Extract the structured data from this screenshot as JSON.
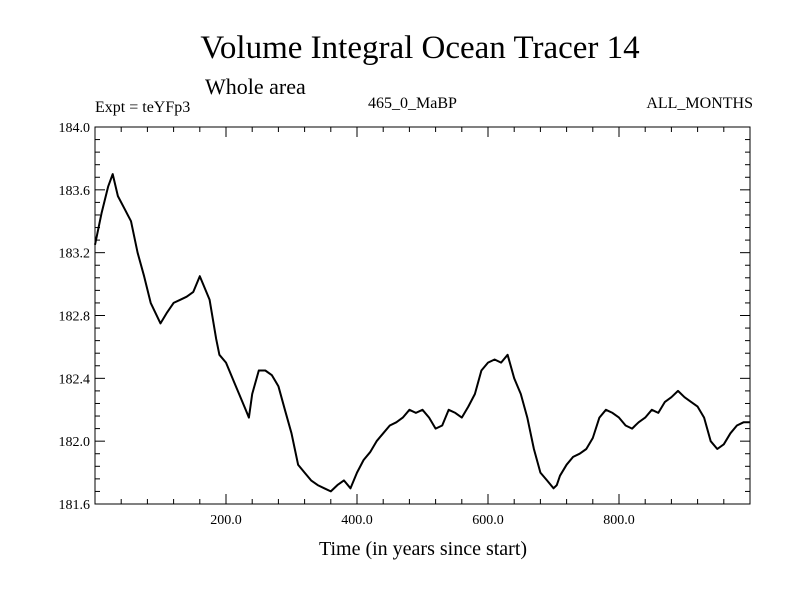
{
  "chart_data": {
    "type": "line",
    "title": "Volume Integral Ocean Tracer 14",
    "subtitle": "Whole area",
    "left_label": "Expt = teYFp3",
    "center_label": "465_0_MaBP",
    "right_label": "ALL_MONTHS",
    "xlabel": "Time (in years since start)",
    "ylabel": "",
    "xlim": [
      0,
      1000
    ],
    "ylim": [
      181.6,
      184.0
    ],
    "x_ticks": [
      200,
      400,
      600,
      800
    ],
    "x_tick_labels": [
      "200.0",
      "400.0",
      "600.0",
      "800.0"
    ],
    "y_ticks": [
      181.6,
      182.0,
      182.4,
      182.8,
      183.2,
      183.6,
      184.0
    ],
    "y_tick_labels": [
      "181.6",
      "182.0",
      "182.4",
      "182.8",
      "183.2",
      "183.6",
      "184.0"
    ],
    "series": [
      {
        "name": "Volume Integral Ocean Tracer 14",
        "color": "#000000",
        "x": [
          0,
          10,
          20,
          27,
          35,
          45,
          55,
          65,
          75,
          85,
          100,
          110,
          120,
          130,
          140,
          150,
          160,
          165,
          175,
          185,
          190,
          200,
          210,
          220,
          230,
          235,
          240,
          250,
          260,
          270,
          280,
          290,
          300,
          305,
          310,
          320,
          330,
          340,
          350,
          360,
          370,
          380,
          390,
          400,
          410,
          420,
          430,
          440,
          450,
          460,
          470,
          480,
          490,
          500,
          510,
          520,
          530,
          540,
          550,
          560,
          570,
          580,
          590,
          600,
          610,
          620,
          630,
          640,
          650,
          660,
          670,
          680,
          690,
          700,
          705,
          710,
          720,
          730,
          740,
          750,
          760,
          770,
          780,
          790,
          800,
          810,
          820,
          830,
          840,
          850,
          860,
          870,
          880,
          890,
          900,
          910,
          920,
          930,
          940,
          950,
          960,
          970,
          980,
          990,
          1000
        ],
        "values": [
          183.25,
          183.45,
          183.62,
          183.7,
          183.56,
          183.48,
          183.4,
          183.2,
          183.05,
          182.88,
          182.75,
          182.82,
          182.88,
          182.9,
          182.92,
          182.95,
          183.05,
          183.0,
          182.9,
          182.65,
          182.55,
          182.5,
          182.4,
          182.3,
          182.2,
          182.15,
          182.3,
          182.45,
          182.45,
          182.42,
          182.35,
          182.2,
          182.05,
          181.95,
          181.85,
          181.8,
          181.75,
          181.72,
          181.7,
          181.68,
          181.72,
          181.75,
          181.7,
          181.8,
          181.88,
          181.93,
          182.0,
          182.05,
          182.1,
          182.12,
          182.15,
          182.2,
          182.18,
          182.2,
          182.15,
          182.08,
          182.1,
          182.2,
          182.18,
          182.15,
          182.22,
          182.3,
          182.45,
          182.5,
          182.52,
          182.5,
          182.55,
          182.4,
          182.3,
          182.15,
          181.95,
          181.8,
          181.75,
          181.7,
          181.72,
          181.78,
          181.85,
          181.9,
          181.92,
          181.95,
          182.02,
          182.15,
          182.2,
          182.18,
          182.15,
          182.1,
          182.08,
          182.12,
          182.15,
          182.2,
          182.18,
          182.25,
          182.28,
          182.32,
          182.28,
          182.25,
          182.22,
          182.15,
          182.0,
          181.95,
          181.98,
          182.05,
          182.1,
          182.12,
          182.12
        ]
      }
    ]
  }
}
